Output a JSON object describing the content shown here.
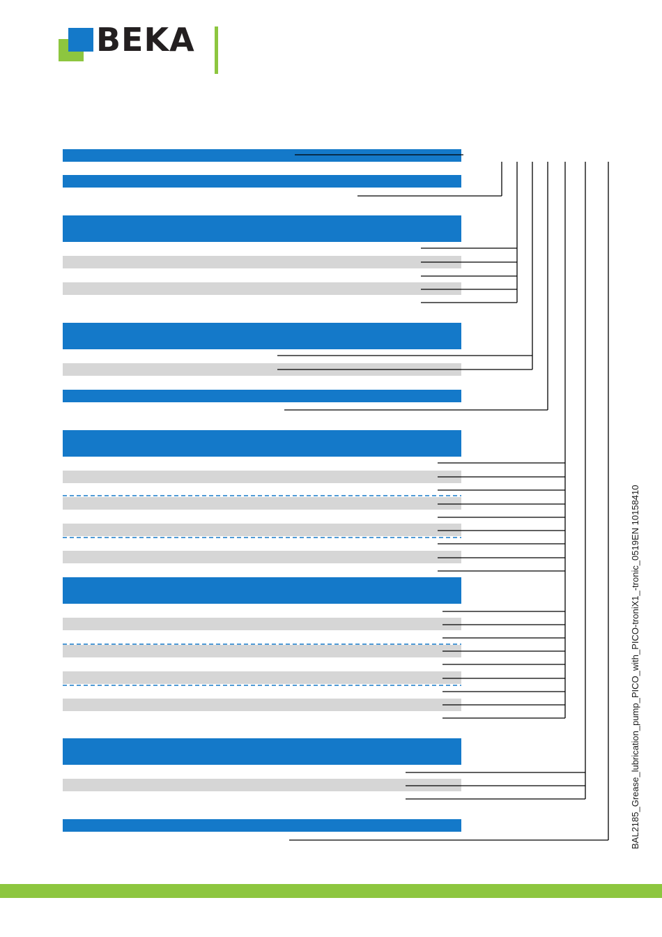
{
  "brand": {
    "logo_text": "BEKA",
    "colors": {
      "blue": "#1479c9",
      "green": "#8dc63f",
      "text": "#231f20"
    }
  },
  "order_code_diagram": {
    "row_colors": {
      "header": "#1479c9",
      "option": "#d6d6d6",
      "divider": "#1479c9",
      "leader": "#000000"
    }
  },
  "footer": {
    "document_id": "BAL2185_Grease_lubrication_pump_PICO_with_PICO-troniX1_-tronic_0519EN 10158410"
  }
}
